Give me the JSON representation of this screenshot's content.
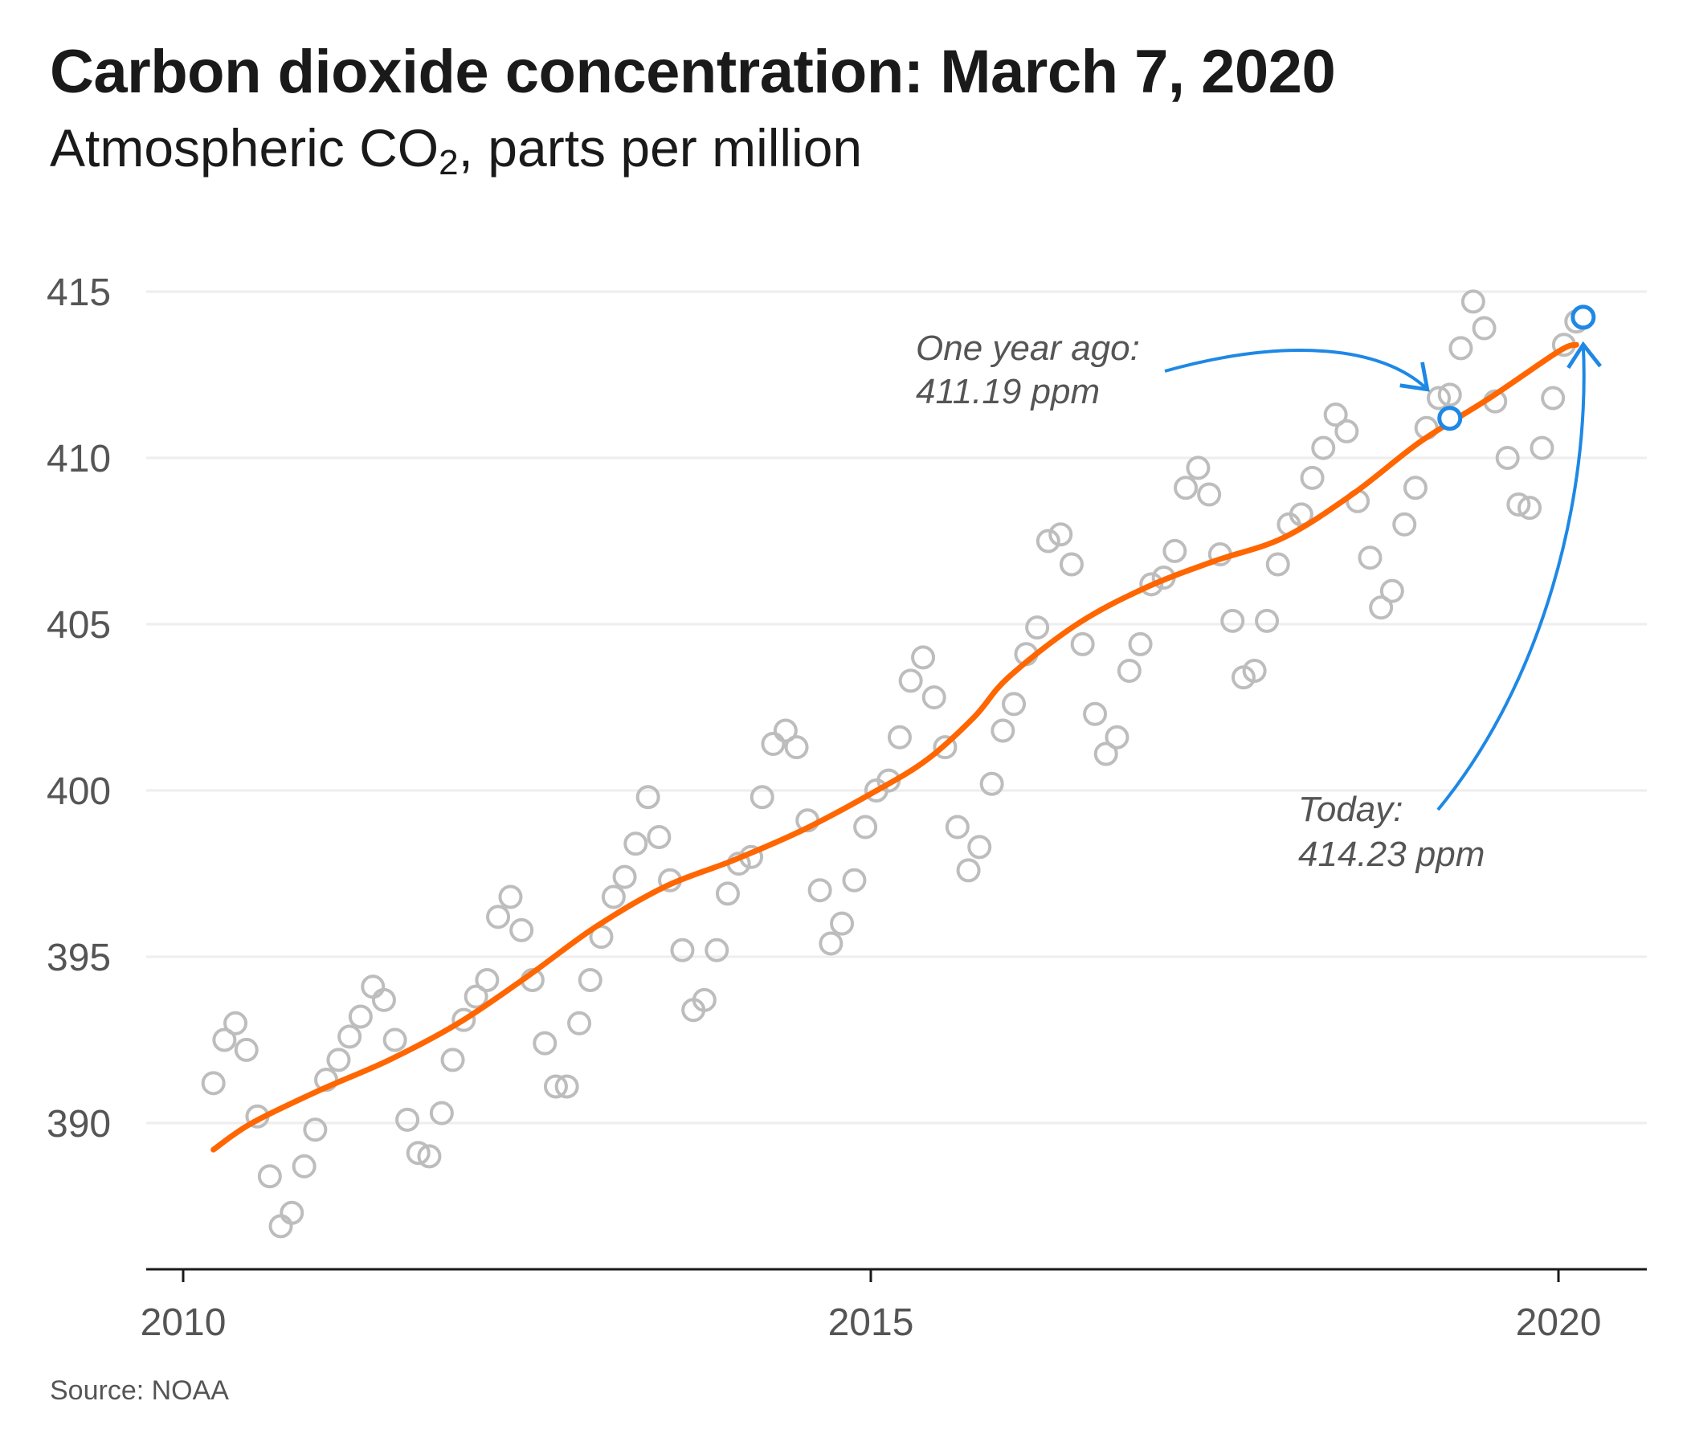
{
  "header": {
    "title": "Carbon dioxide concentration: March 7, 2020",
    "subtitle_main": "Atmospheric CO",
    "subtitle_sub": "2",
    "subtitle_rest": ", parts per million"
  },
  "footer": {
    "source": "Source: NOAA"
  },
  "chart_data": {
    "type": "scatter",
    "title": "Carbon dioxide concentration: March 7, 2020",
    "subtitle": "Atmospheric CO2, parts per million",
    "xlabel": "",
    "ylabel": "",
    "xlim": [
      2009.8,
      2020.7
    ],
    "ylim": [
      386.5,
      416
    ],
    "x_ticks": [
      2010,
      2015,
      2020
    ],
    "y_ticks": [
      390,
      395,
      400,
      405,
      410,
      415
    ],
    "grid": "horizontal",
    "colors": {
      "points": "#bdbdbd",
      "trend": "#ff6600",
      "highlight": "#1e88e5",
      "grid": "#eeeeee",
      "axis": "#1a1a1a"
    },
    "series": [
      {
        "kind": "points",
        "points": [
          [
            2010.22,
            391.2
          ],
          [
            2010.3,
            392.5
          ],
          [
            2010.38,
            393.0
          ],
          [
            2010.46,
            392.2
          ],
          [
            2010.54,
            390.2
          ],
          [
            2010.63,
            388.4
          ],
          [
            2010.71,
            386.9
          ],
          [
            2010.79,
            387.3
          ],
          [
            2010.88,
            388.7
          ],
          [
            2010.96,
            389.8
          ],
          [
            2011.04,
            391.3
          ],
          [
            2011.13,
            391.9
          ],
          [
            2011.21,
            392.6
          ],
          [
            2011.29,
            393.2
          ],
          [
            2011.38,
            394.1
          ],
          [
            2011.46,
            393.7
          ],
          [
            2011.54,
            392.5
          ],
          [
            2011.63,
            390.1
          ],
          [
            2011.71,
            389.1
          ],
          [
            2011.79,
            389.0
          ],
          [
            2011.88,
            390.3
          ],
          [
            2011.96,
            391.9
          ],
          [
            2012.04,
            393.1
          ],
          [
            2012.13,
            393.8
          ],
          [
            2012.21,
            394.3
          ],
          [
            2012.29,
            396.2
          ],
          [
            2012.38,
            396.8
          ],
          [
            2012.46,
            395.8
          ],
          [
            2012.54,
            394.3
          ],
          [
            2012.63,
            392.4
          ],
          [
            2012.71,
            391.1
          ],
          [
            2012.79,
            391.1
          ],
          [
            2012.88,
            393.0
          ],
          [
            2012.96,
            394.3
          ],
          [
            2013.04,
            395.6
          ],
          [
            2013.13,
            396.8
          ],
          [
            2013.21,
            397.4
          ],
          [
            2013.29,
            398.4
          ],
          [
            2013.38,
            399.8
          ],
          [
            2013.46,
            398.6
          ],
          [
            2013.54,
            397.3
          ],
          [
            2013.63,
            395.2
          ],
          [
            2013.71,
            393.4
          ],
          [
            2013.79,
            393.7
          ],
          [
            2013.88,
            395.2
          ],
          [
            2013.96,
            396.9
          ],
          [
            2014.04,
            397.8
          ],
          [
            2014.13,
            398.0
          ],
          [
            2014.21,
            399.8
          ],
          [
            2014.29,
            401.4
          ],
          [
            2014.38,
            401.8
          ],
          [
            2014.46,
            401.3
          ],
          [
            2014.54,
            399.1
          ],
          [
            2014.63,
            397.0
          ],
          [
            2014.71,
            395.4
          ],
          [
            2014.79,
            396.0
          ],
          [
            2014.88,
            397.3
          ],
          [
            2014.96,
            398.9
          ],
          [
            2015.04,
            400.0
          ],
          [
            2015.13,
            400.3
          ],
          [
            2015.21,
            401.6
          ],
          [
            2015.29,
            403.3
          ],
          [
            2015.38,
            404.0
          ],
          [
            2015.46,
            402.8
          ],
          [
            2015.54,
            401.3
          ],
          [
            2015.63,
            398.9
          ],
          [
            2015.71,
            397.6
          ],
          [
            2015.79,
            398.3
          ],
          [
            2015.88,
            400.2
          ],
          [
            2015.96,
            401.8
          ],
          [
            2016.04,
            402.6
          ],
          [
            2016.13,
            404.1
          ],
          [
            2016.21,
            404.9
          ],
          [
            2016.29,
            407.5
          ],
          [
            2016.38,
            407.7
          ],
          [
            2016.46,
            406.8
          ],
          [
            2016.54,
            404.4
          ],
          [
            2016.63,
            402.3
          ],
          [
            2016.71,
            401.1
          ],
          [
            2016.79,
            401.6
          ],
          [
            2016.88,
            403.6
          ],
          [
            2016.96,
            404.4
          ],
          [
            2017.04,
            406.2
          ],
          [
            2017.13,
            406.4
          ],
          [
            2017.21,
            407.2
          ],
          [
            2017.29,
            409.1
          ],
          [
            2017.38,
            409.7
          ],
          [
            2017.46,
            408.9
          ],
          [
            2017.54,
            407.1
          ],
          [
            2017.63,
            405.1
          ],
          [
            2017.71,
            403.4
          ],
          [
            2017.79,
            403.6
          ],
          [
            2017.88,
            405.1
          ],
          [
            2017.96,
            406.8
          ],
          [
            2018.04,
            408.0
          ],
          [
            2018.13,
            408.3
          ],
          [
            2018.21,
            409.4
          ],
          [
            2018.29,
            410.3
          ],
          [
            2018.38,
            411.3
          ],
          [
            2018.46,
            410.8
          ],
          [
            2018.54,
            408.7
          ],
          [
            2018.63,
            407.0
          ],
          [
            2018.71,
            405.5
          ],
          [
            2018.79,
            406.0
          ],
          [
            2018.88,
            408.0
          ],
          [
            2018.96,
            409.1
          ],
          [
            2019.04,
            410.9
          ],
          [
            2019.13,
            411.8
          ],
          [
            2019.21,
            411.9
          ],
          [
            2019.29,
            413.3
          ],
          [
            2019.38,
            414.7
          ],
          [
            2019.46,
            413.9
          ],
          [
            2019.54,
            411.7
          ],
          [
            2019.63,
            410.0
          ],
          [
            2019.71,
            408.6
          ],
          [
            2019.79,
            408.5
          ],
          [
            2019.88,
            410.3
          ],
          [
            2019.96,
            411.8
          ],
          [
            2020.04,
            413.4
          ],
          [
            2020.13,
            414.1
          ]
        ]
      },
      {
        "kind": "trend",
        "points": [
          [
            2010.22,
            389.2
          ],
          [
            2010.5,
            390.0
          ],
          [
            2011.0,
            391.0
          ],
          [
            2011.5,
            391.9
          ],
          [
            2012.0,
            393.0
          ],
          [
            2012.5,
            394.4
          ],
          [
            2013.0,
            395.9
          ],
          [
            2013.5,
            397.1
          ],
          [
            2014.0,
            397.9
          ],
          [
            2014.5,
            398.8
          ],
          [
            2015.0,
            399.9
          ],
          [
            2015.4,
            400.9
          ],
          [
            2015.75,
            402.2
          ],
          [
            2016.0,
            403.4
          ],
          [
            2016.5,
            405.0
          ],
          [
            2017.0,
            406.1
          ],
          [
            2017.5,
            406.9
          ],
          [
            2018.0,
            407.6
          ],
          [
            2018.5,
            408.9
          ],
          [
            2019.0,
            410.5
          ],
          [
            2019.5,
            411.8
          ],
          [
            2020.0,
            413.2
          ],
          [
            2020.13,
            413.4
          ]
        ]
      },
      {
        "kind": "highlight",
        "points": [
          [
            2019.21,
            411.19
          ],
          [
            2020.18,
            414.23
          ]
        ]
      }
    ],
    "annotations": [
      {
        "line1": "One year ago:",
        "line2": "411.19 ppm",
        "x": 2019.21,
        "y": 411.19
      },
      {
        "line1": "Today:",
        "line2": "414.23 ppm",
        "x": 2020.18,
        "y": 414.23
      }
    ]
  }
}
